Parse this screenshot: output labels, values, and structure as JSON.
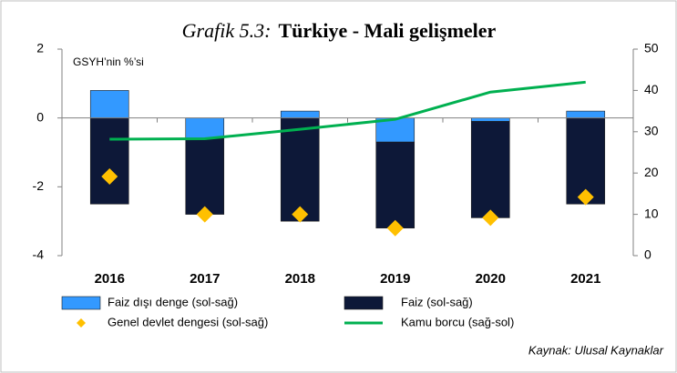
{
  "chart_data": {
    "type": "bar",
    "title_label": "Grafik 5.3:",
    "title": "Türkiye - Mali gelişmeler",
    "y_label": "GSYH’nin %’si",
    "source": "Kaynak: Ulusal Kaynaklar",
    "categories": [
      "2016",
      "2017",
      "2018",
      "2019",
      "2020",
      "2021"
    ],
    "ylim": [
      -4,
      2
    ],
    "yticks": [
      -4,
      -2,
      0,
      2
    ],
    "y2lim": [
      0,
      50
    ],
    "y2ticks": [
      0,
      10,
      20,
      30,
      40,
      50
    ],
    "series": [
      {
        "name": "Faiz dışı denge (sol-sağ)",
        "type": "bar",
        "color": "#3399ff",
        "values": [
          0.8,
          -0.6,
          0.2,
          -0.7,
          -0.1,
          0.2
        ]
      },
      {
        "name": "Faiz (sol-sağ)",
        "type": "bar",
        "color": "#0d1838",
        "values": [
          -2.5,
          -2.2,
          -3.0,
          -2.5,
          -2.8,
          -2.5
        ]
      },
      {
        "name": "Genel devlet dengesi (sol-sağ)",
        "type": "scatter",
        "color": "#ffc000",
        "values": [
          -1.7,
          -2.8,
          -2.8,
          -3.2,
          -2.9,
          -2.3
        ]
      },
      {
        "name": "Kamu borcu (sağ-sol)",
        "type": "line",
        "axis": "y2",
        "color": "#00b050",
        "values": [
          28.2,
          28.3,
          30.6,
          33.0,
          39.6,
          42.0
        ]
      }
    ]
  }
}
